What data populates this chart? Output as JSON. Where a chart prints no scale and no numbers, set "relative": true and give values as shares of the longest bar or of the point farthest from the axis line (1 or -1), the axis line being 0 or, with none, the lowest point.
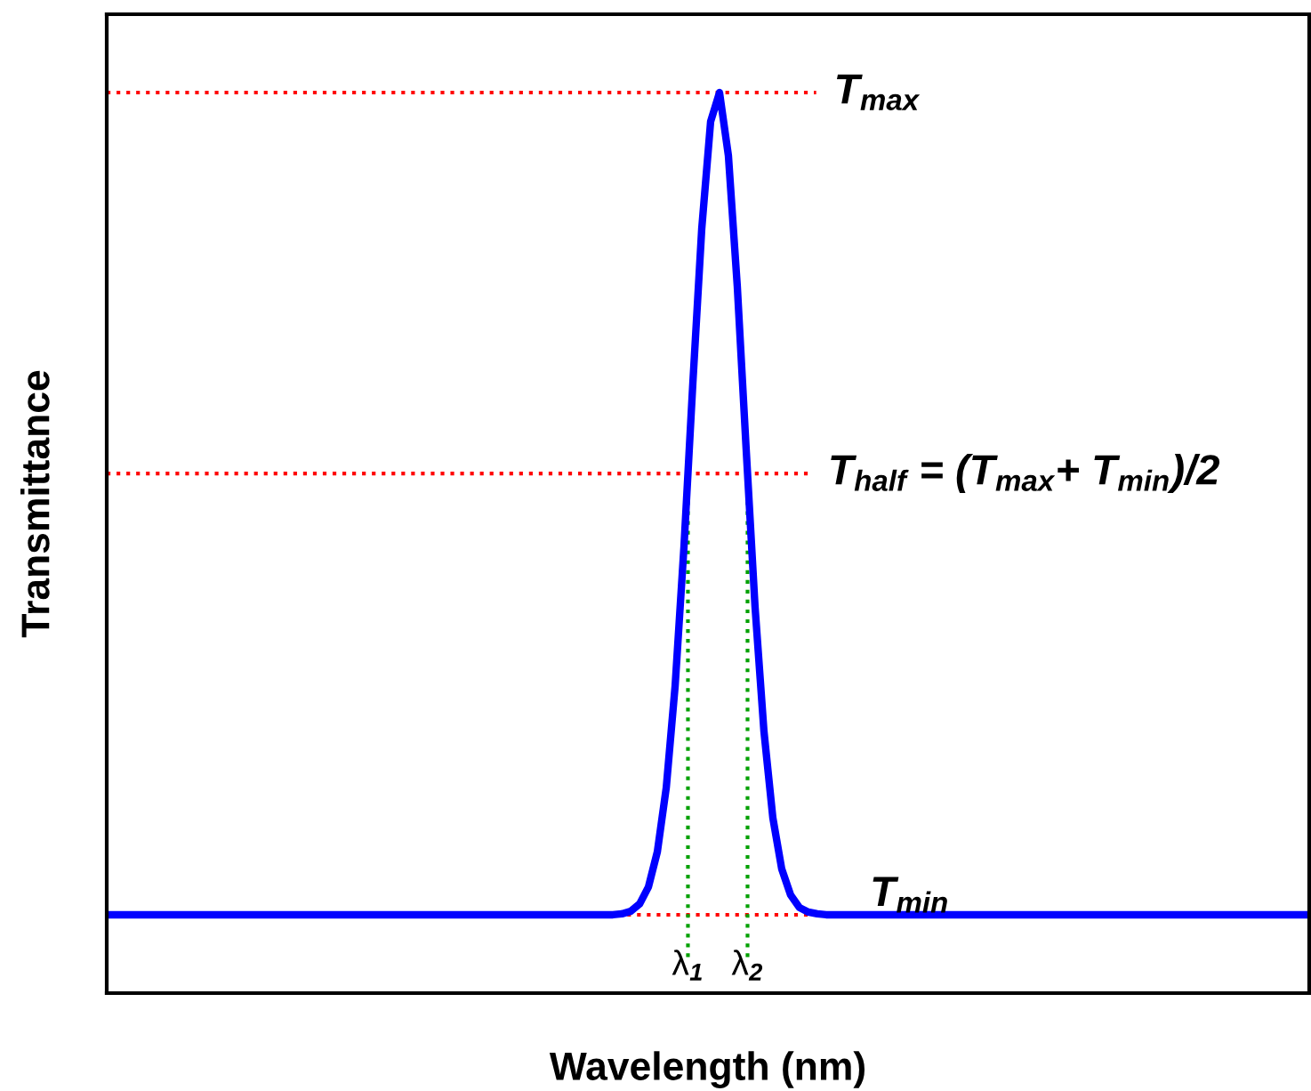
{
  "chart_data": {
    "type": "line",
    "relative": true,
    "xlabel": "Wavelength (nm)",
    "ylabel": "Transmittance",
    "categories": [
      null,
      null,
      null,
      null,
      null,
      null,
      null,
      null,
      null,
      null,
      null,
      null,
      null,
      null,
      null,
      null,
      null,
      null,
      null,
      null,
      null,
      null,
      null,
      null,
      null,
      null,
      null,
      null,
      null,
      null,
      null,
      null,
      null,
      null,
      null,
      null,
      null,
      null,
      null,
      null,
      null,
      null,
      null,
      null,
      null,
      null,
      null,
      null,
      null,
      null,
      null,
      null,
      null,
      null,
      null,
      null,
      null,
      null,
      null,
      null,
      null,
      null,
      null,
      null,
      null,
      null,
      null,
      null,
      null,
      null,
      null,
      null,
      null,
      null,
      null,
      null,
      null,
      null,
      null,
      null,
      null,
      null,
      null,
      null,
      null,
      null,
      null,
      null,
      null,
      null,
      null,
      null,
      null,
      null,
      null,
      null,
      null,
      null,
      null,
      null,
      null,
      null,
      null,
      null,
      null,
      null,
      null,
      null,
      null,
      null,
      null,
      null,
      null,
      null,
      null,
      null,
      null,
      null,
      null,
      null,
      null,
      null,
      null,
      null,
      null,
      null,
      null,
      null,
      null,
      null,
      null,
      null,
      null,
      null,
      null,
      null
    ],
    "series": [
      {
        "color": "#0000ff",
        "values": [
          0.087,
          0.087,
          0.087,
          0.087,
          0.087,
          0.087,
          0.087,
          0.087,
          0.087,
          0.087,
          0.087,
          0.087,
          0.087,
          0.087,
          0.087,
          0.087,
          0.087,
          0.087,
          0.087,
          0.087,
          0.087,
          0.087,
          0.087,
          0.087,
          0.087,
          0.087,
          0.087,
          0.087,
          0.087,
          0.087,
          0.087,
          0.087,
          0.087,
          0.087,
          0.087,
          0.087,
          0.087,
          0.087,
          0.087,
          0.087,
          0.087,
          0.087,
          0.087,
          0.087,
          0.087,
          0.087,
          0.087,
          0.087,
          0.087,
          0.087,
          0.087,
          0.087,
          0.087,
          0.087,
          0.087,
          0.087,
          0.087,
          0.087,
          0.088,
          0.091,
          0.099,
          0.118,
          0.157,
          0.228,
          0.341,
          0.496,
          0.678,
          0.849,
          0.968,
          1,
          0.93,
          0.785,
          0.604,
          0.429,
          0.291,
          0.195,
          0.138,
          0.109,
          0.095,
          0.09,
          0.088,
          0.087,
          0.087,
          0.087,
          0.087,
          0.087,
          0.087,
          0.087,
          0.087,
          0.087,
          0.087,
          0.087,
          0.087,
          0.087,
          0.087,
          0.087,
          0.087,
          0.087,
          0.087,
          0.087,
          0.087,
          0.087,
          0.087,
          0.087,
          0.087,
          0.087,
          0.087,
          0.087,
          0.087,
          0.087,
          0.087,
          0.087,
          0.087,
          0.087,
          0.087,
          0.087,
          0.087,
          0.087,
          0.087,
          0.087,
          0.087,
          0.087,
          0.087,
          0.087,
          0.087,
          0.087,
          0.087,
          0.087,
          0.087,
          0.087,
          0.087,
          0.087,
          0.087,
          0.087,
          0.087,
          0.087
        ]
      }
    ],
    "ref_lines": [
      {
        "axis": "y",
        "value": 1,
        "label": "T$_{max}$",
        "color": "#ff0000",
        "line_style": "dotted"
      },
      {
        "axis": "y",
        "value": 0.577,
        "label": "T$_{half}$ = (T$_{max}$+ T$_{min}$)/2",
        "color": "#ff0000",
        "line_style": "dotted"
      },
      {
        "axis": "y",
        "value": 0.087,
        "label": "T$_{min}$",
        "color": "#ff0000",
        "line_style": "dotted"
      }
    ],
    "annotations": [
      "λ$_{1}$",
      "λ$_{2}$"
    ],
    "grid": false,
    "marker": "none",
    "line_style": "solid"
  }
}
